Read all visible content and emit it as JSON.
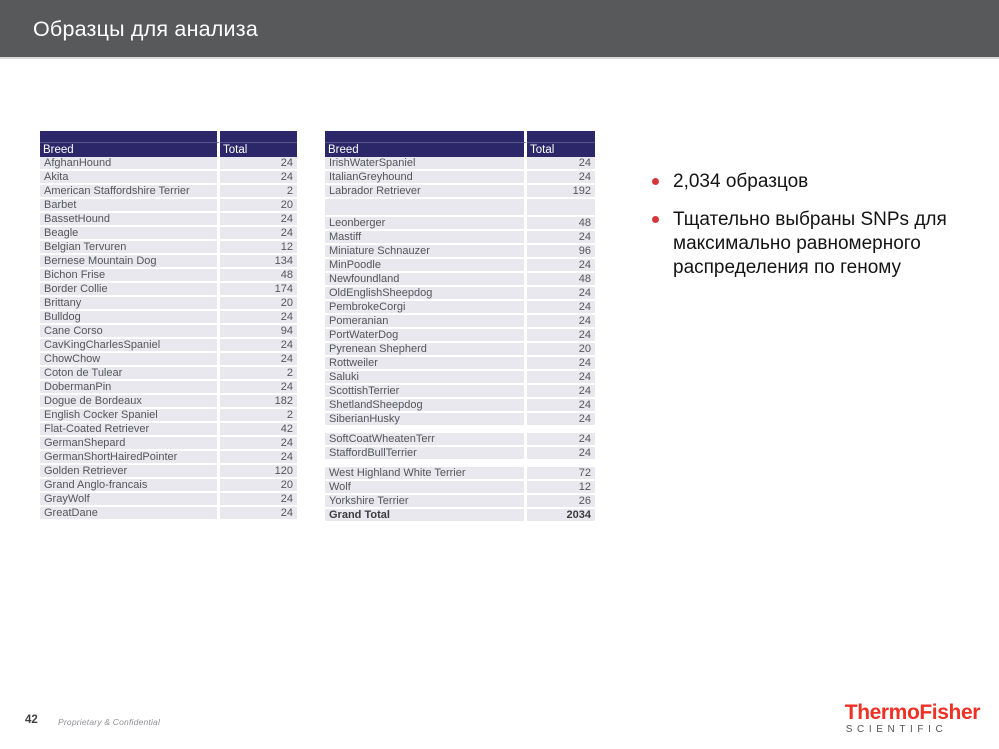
{
  "slide": {
    "title": "Образцы для анализа",
    "page_number": "42",
    "footer_note": "Proprietary & Confidential"
  },
  "logo": {
    "line1": "ThermoFisher",
    "line2": "SCIENTIFIC"
  },
  "bullets": [
    "2,034 образцов",
    "Тщательно выбраны SNPs для максимально равномерного распределения по геному"
  ],
  "colors": {
    "title_bar_bg": "#58595B",
    "table_header_bg": "#2B2768",
    "table_row_bg": "#E8E8EE",
    "bullet_red": "#D6373B",
    "logo_red": "#EE3124",
    "logo_gray": "#54565A"
  },
  "tables": [
    {
      "columns": [
        "Breed",
        "Total"
      ],
      "rows": [
        [
          "AfghanHound",
          "24"
        ],
        [
          "Akita",
          "24"
        ],
        [
          "American Staffordshire Terrier",
          "2"
        ],
        [
          "Barbet",
          "20"
        ],
        [
          "BassetHound",
          "24"
        ],
        [
          "Beagle",
          "24"
        ],
        [
          "Belgian Tervuren",
          "12"
        ],
        [
          "Bernese Mountain Dog",
          "134"
        ],
        [
          "Bichon Frise",
          "48"
        ],
        [
          "Border Collie",
          "174"
        ],
        [
          "Brittany",
          "20"
        ],
        [
          "Bulldog",
          "24"
        ],
        [
          "Cane Corso",
          "94"
        ],
        [
          "CavKingCharlesSpaniel",
          "24"
        ],
        [
          "ChowChow",
          "24"
        ],
        [
          "Coton de Tulear",
          "2"
        ],
        [
          "DobermanPin",
          "24"
        ],
        [
          "Dogue de Bordeaux",
          "182"
        ],
        [
          "English Cocker Spaniel",
          "2"
        ],
        [
          "Flat-Coated Retriever",
          "42"
        ],
        [
          "GermanShepard",
          "24"
        ],
        [
          "GermanShortHairedPointer",
          "24"
        ],
        [
          "Golden Retriever",
          "120"
        ],
        [
          "Grand Anglo-francais",
          "20"
        ],
        [
          "GrayWolf",
          "24"
        ],
        [
          "GreatDane",
          "24"
        ]
      ]
    },
    {
      "columns": [
        "Breed",
        "Total"
      ],
      "rows": [
        [
          "IrishWaterSpaniel",
          "24"
        ],
        [
          "ItalianGreyhound",
          "24"
        ],
        [
          "Labrador Retriever",
          "192"
        ],
        {
          "type": "blank"
        },
        [
          "Leonberger",
          "48"
        ],
        [
          "Mastiff",
          "24"
        ],
        [
          "Miniature Schnauzer",
          "96"
        ],
        [
          "MinPoodle",
          "24"
        ],
        [
          "Newfoundland",
          "48"
        ],
        [
          "OldEnglishSheepdog",
          "24"
        ],
        [
          "PembrokeCorgi",
          "24"
        ],
        [
          "Pomeranian",
          "24"
        ],
        [
          "PortWaterDog",
          "24"
        ],
        [
          "Pyrenean Shepherd",
          "20"
        ],
        [
          "Rottweiler",
          "24"
        ],
        [
          "Saluki",
          "24"
        ],
        [
          "ScottishTerrier",
          "24"
        ],
        [
          "ShetlandSheepdog",
          "24"
        ],
        [
          "SiberianHusky",
          "24"
        ],
        {
          "type": "gap"
        },
        [
          "SoftCoatWheatenTerr",
          "24"
        ],
        [
          "StaffordBullTerrier",
          "24"
        ],
        {
          "type": "gap"
        },
        [
          "West Highland White Terrier",
          "72"
        ],
        [
          "Wolf",
          "12"
        ],
        [
          "Yorkshire Terrier",
          "26"
        ],
        {
          "type": "grand",
          "breed": "Grand Total",
          "total": "2034"
        }
      ]
    }
  ]
}
